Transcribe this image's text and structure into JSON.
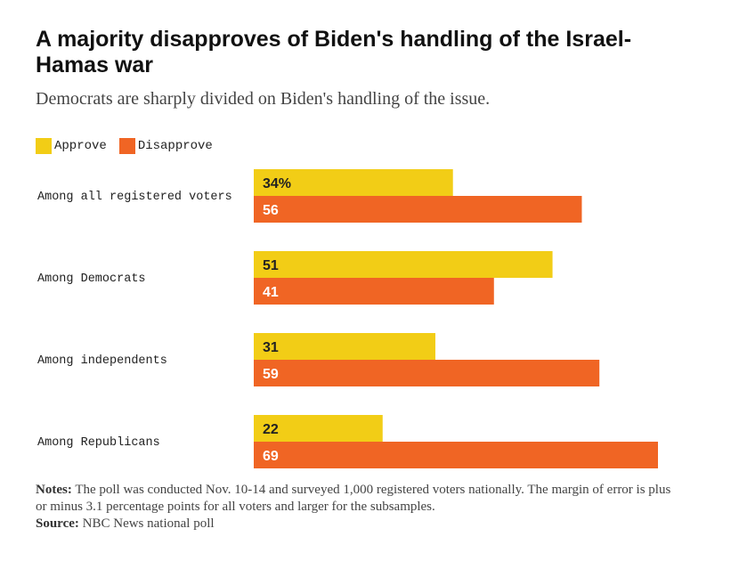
{
  "title": "A majority disapproves of Biden's handling of the Israel-Hamas war",
  "subtitle": "Democrats are sharply divided on Biden's handling of the issue.",
  "legend": [
    {
      "label": "Approve",
      "color": "#f2cd16"
    },
    {
      "label": "Disapprove",
      "color": "#f06524"
    }
  ],
  "chart_data": {
    "type": "bar",
    "orientation": "horizontal",
    "categories": [
      "Among all registered voters",
      "Among Democrats",
      "Among independents",
      "Among Republicans"
    ],
    "series": [
      {
        "name": "Approve",
        "values": [
          34,
          51,
          31,
          22
        ],
        "labels": [
          "34%",
          "51",
          "31",
          "22"
        ]
      },
      {
        "name": "Disapprove",
        "values": [
          56,
          41,
          59,
          69
        ],
        "labels": [
          "56",
          "41",
          "59",
          "69"
        ]
      }
    ],
    "xlim": [
      0,
      69
    ],
    "title": "A majority disapproves of Biden's handling of the Israel-Hamas war"
  },
  "notes": {
    "notes_label": "Notes:",
    "notes_text": "The poll was conducted Nov. 10-14 and surveyed 1,000 registered voters nationally. The margin of error is plus or minus 3.1 percentage points for all voters and larger for the subsamples.",
    "source_label": "Source:",
    "source_text": "NBC News national poll"
  }
}
